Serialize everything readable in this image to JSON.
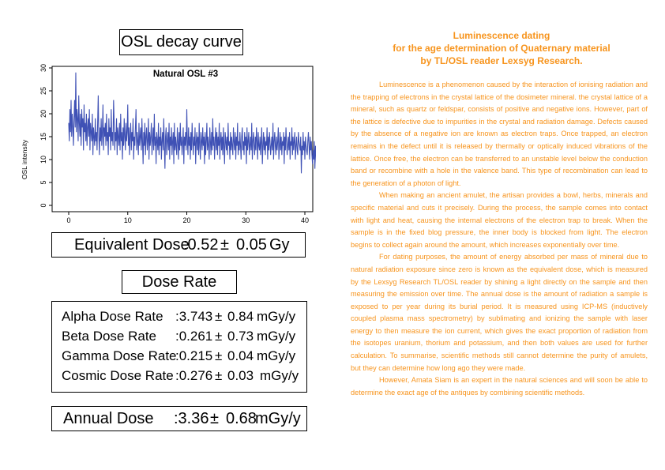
{
  "left_panel": {
    "osl_title": "OSL decay curve",
    "dose_rate_title": "Dose Rate",
    "equivalent_dose": {
      "label": "Equivalent Dose",
      "colon_value": ":0.52",
      "pm": "±",
      "error": "0.05",
      "unit": "Gy"
    },
    "dose_rates": [
      {
        "label": "Alpha Dose Rate",
        "value": ":3.743",
        "pm": "±",
        "error": "0.84",
        "unit": "mGy/y"
      },
      {
        "label": "Beta Dose Rate",
        "value": ":0.261",
        "pm": "±",
        "error": "0.73",
        "unit": "mGy/y"
      },
      {
        "label": "Gamma Dose Rate",
        "value": ":0.215",
        "pm": "±",
        "error": "0.04",
        "unit": "mGy/y"
      },
      {
        "label": "Cosmic Dose Rate",
        "value": ":0.276",
        "pm": "±",
        "error": "0.03",
        "unit": "mGy/y"
      }
    ],
    "annual_dose": {
      "label": "Annual Dose",
      "value": ":3.36",
      "pm": "±",
      "error": "0.68",
      "unit": "mGy/y"
    }
  },
  "chart_data": {
    "type": "line",
    "title": "Natural OSL #3",
    "xlabel": "",
    "ylabel": "OSL intensity",
    "xlim": [
      0,
      40
    ],
    "ylim": [
      0,
      30
    ],
    "x_ticks": [
      0,
      10,
      20,
      30,
      40
    ],
    "y_ticks": [
      0,
      5,
      10,
      15,
      20,
      25,
      30
    ],
    "grid": false,
    "series_color": "#3f51b5",
    "x_step": 0.1,
    "values": [
      18,
      14,
      21,
      16,
      23,
      15,
      20,
      17,
      13,
      19,
      23,
      17,
      29,
      16,
      21,
      19,
      14,
      24,
      18,
      15,
      20,
      13,
      21,
      17,
      19,
      12,
      22,
      16,
      18,
      14,
      20,
      13,
      17,
      19,
      15,
      21,
      12,
      18,
      16,
      14,
      20,
      11,
      17,
      15,
      13,
      19,
      14,
      16,
      12,
      18,
      24,
      15,
      11,
      17,
      14,
      19,
      13,
      16,
      22,
      12,
      17,
      15,
      18,
      13,
      20,
      14,
      16,
      11,
      19,
      15,
      17,
      12,
      21,
      14,
      16,
      13,
      23,
      18,
      12,
      16,
      14,
      19,
      11,
      17,
      15,
      13,
      18,
      12,
      20,
      14,
      16,
      10,
      17,
      13,
      19,
      15,
      12,
      18,
      14,
      16,
      22,
      13,
      17,
      11,
      15,
      18,
      12,
      16,
      14,
      19,
      10,
      15,
      13,
      17,
      21,
      12,
      16,
      14,
      11,
      18,
      13,
      15,
      17,
      12,
      19,
      14,
      9,
      16,
      13,
      18,
      11,
      15,
      17,
      12,
      14,
      19,
      10,
      16,
      13,
      15,
      18,
      11,
      14,
      17,
      12,
      20,
      13,
      15,
      9,
      16,
      14,
      12,
      18,
      11,
      15,
      13,
      17,
      10,
      14,
      16,
      12,
      19,
      13,
      8,
      15,
      17,
      11,
      14,
      16,
      12,
      18,
      10,
      15,
      13,
      17,
      11,
      14,
      16,
      9,
      18,
      12,
      15,
      13,
      11,
      17,
      14,
      10,
      16,
      12,
      18,
      13,
      15,
      11,
      14,
      17,
      9,
      15,
      13,
      16,
      12,
      21,
      14,
      11,
      17,
      13,
      15,
      10,
      16,
      12,
      18,
      14,
      11,
      15,
      13,
      17,
      9,
      14,
      16,
      12,
      15,
      11,
      18,
      13,
      10,
      16,
      14,
      12,
      17,
      13,
      15,
      9,
      16,
      11,
      14,
      18,
      12,
      15,
      13,
      10,
      17,
      14,
      11,
      16,
      12,
      19,
      13,
      15,
      10,
      14,
      17,
      12,
      16,
      11,
      15,
      13,
      18,
      10,
      14,
      16,
      12,
      15,
      11,
      17,
      13,
      9,
      16,
      14,
      12,
      15,
      11,
      18,
      13,
      14,
      10,
      16,
      12,
      15,
      13,
      11,
      17,
      14,
      12,
      16,
      10,
      15,
      13,
      18,
      11,
      14,
      12,
      16,
      13,
      10,
      15,
      17,
      12,
      14,
      11,
      16,
      13,
      15,
      9,
      17,
      12,
      14,
      16,
      11,
      13,
      15,
      12,
      18,
      10,
      14,
      16,
      13,
      11,
      15,
      12,
      17,
      14,
      10,
      16,
      13,
      12,
      15,
      11,
      14,
      17,
      9,
      13,
      16,
      12,
      15,
      11,
      14,
      13,
      17,
      10,
      15,
      12,
      16,
      14,
      11,
      13,
      15,
      12,
      18,
      10,
      14,
      16,
      13,
      11,
      15,
      12,
      14,
      17,
      10,
      13,
      16,
      12,
      15,
      11,
      14,
      13,
      16,
      9,
      15,
      12,
      17,
      14,
      11,
      13,
      15,
      12,
      16,
      10,
      14,
      13,
      17,
      11,
      15,
      12,
      14,
      16,
      10,
      13,
      15,
      12,
      11,
      16,
      14,
      13,
      12,
      15,
      7,
      13,
      11,
      16,
      12,
      14,
      10,
      15,
      13,
      12,
      11,
      14,
      16,
      13,
      10,
      15,
      12,
      14,
      11,
      9,
      12,
      10,
      14,
      8,
      13,
      11,
      7,
      10,
      5,
      12,
      8,
      11,
      14,
      9,
      12,
      7,
      11,
      16,
      13,
      9,
      12,
      10,
      14,
      8,
      12,
      11,
      9,
      7,
      13,
      15,
      18,
      14
    ]
  },
  "right_panel": {
    "title_lines": [
      "Luminescence dating",
      "for the age determination of Quaternary material",
      "by TL/OSL reader Lexsyg Research."
    ],
    "paragraphs": [
      "Luminescence is a phenomenon caused by the interaction of ionising radiation and the trapping of electrons in the crystal lattice of the dosimeter mineral. the crystal lattice of a mineral, such as quartz or feldspar, consists of positive and negative ions. However, part of the lattice is defective due to impurities in the crystal and radiation damage. Defects caused by the absence of a negative ion are known as electron traps. Once trapped, an electron remains in the defect until it is released by thermally or optically induced vibrations of the lattice. Once free, the electron can be transferred to an unstable level below the conduction band or recombine with a hole in the valence band. This type of recombination can lead to the generation of a photon of light.",
      "When making an ancient amulet, the artisan provides a bowl, herbs, minerals and specific material and cuts it precisely. During the process, the sample comes into contact with light and heat, causing the internal electrons of the electron trap to break. When the sample is in the fixed blog pressure, the inner body is blocked from light. The electron begins to collect again around the amount, which increases exponentially over time.",
      "For dating purposes, the amount of energy absorbed per mass of mineral due to natural radiation exposure since zero is known as the equivalent dose, which is measured by the Lexsyg Research TL/OSL reader by shining a light directly on the sample and then measuring the emission over time. The annual dose is the amount of radiation a sample is exposed to per year during its burial period. It is measured using ICP-MS (inductively coupled plasma mass spectrometry) by sublimating and ionizing the sample with laser energy to then measure the ion current, which gives the exact proportion of radiation from the isotopes uranium, thorium and potassium, and then both values are used for further calculation. To summarise, scientific methods still cannot determine the purity of amulets, but they can determine how long ago they were made.",
      "However, Amata Siam is an expert in the natural sciences and will soon be able to determine the exact age of the antiques by combining scientific methods."
    ]
  }
}
